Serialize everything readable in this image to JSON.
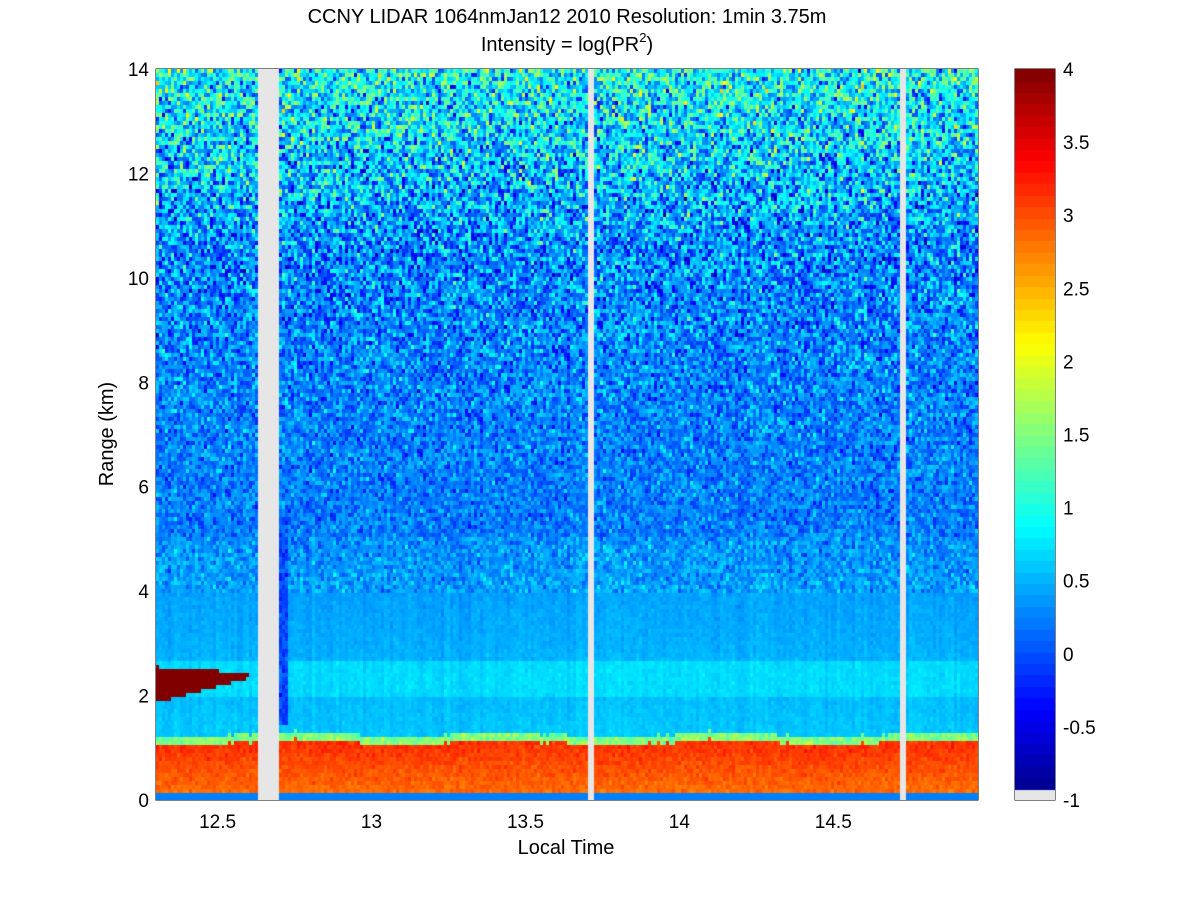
{
  "chart_data": {
    "type": "heatmap",
    "title": "CCNY LIDAR 1064nmJan12 2010 Resolution: 1min 3.75m",
    "subtitle_prefix": "Intensity = log(PR",
    "subtitle_superscript": "2",
    "subtitle_suffix": ")",
    "xlabel": "Local Time",
    "ylabel": "Range (km)",
    "xlim": [
      12.3,
      14.97
    ],
    "ylim": [
      0,
      14
    ],
    "xticks": [
      12.5,
      13,
      13.5,
      14,
      14.5
    ],
    "xtick_labels": [
      "12.5",
      "13",
      "13.5",
      "14",
      "14.5"
    ],
    "yticks": [
      0,
      2,
      4,
      6,
      8,
      10,
      12,
      14
    ],
    "ytick_labels": [
      "0",
      "2",
      "4",
      "6",
      "8",
      "10",
      "12",
      "14"
    ],
    "grid": "dotted",
    "colormap": "jet",
    "clim": [
      -1,
      4
    ],
    "colorbar_ticks": [
      -1,
      -0.5,
      0,
      0.5,
      1,
      1.5,
      2,
      2.5,
      3,
      3.5,
      4
    ],
    "colorbar_tick_labels": [
      "-1",
      "-0.5",
      "0",
      "0.5",
      "1",
      "1.5",
      "2",
      "2.5",
      "3",
      "3.5",
      "4"
    ],
    "no_data_color": "#e6e6e6",
    "data_gaps_time": [
      [
        12.63,
        12.7
      ],
      [
        13.7,
        13.72
      ],
      [
        14.72,
        14.74
      ]
    ],
    "features": {
      "boundary_layer_top_km": 1.1,
      "boundary_layer_value": 2.8,
      "aerosol_layer_km": [
        2.0,
        2.7
      ],
      "aerosol_layer_value": 0.7,
      "cloud_layer": {
        "time": [
          12.3,
          12.6
        ],
        "range_km": [
          1.9,
          2.6
        ],
        "value": 4
      },
      "background_noise_upper_value": 1.7,
      "background_noise_mid_value": 0.2
    }
  }
}
